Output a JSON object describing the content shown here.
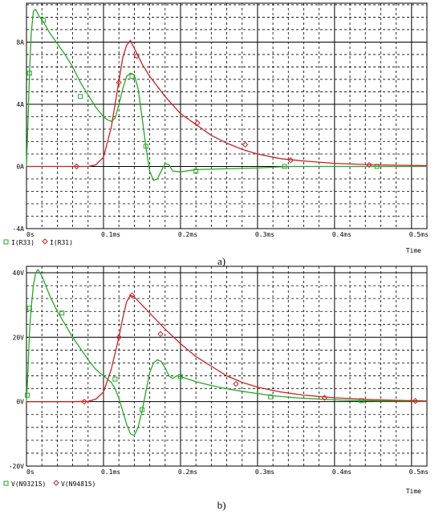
{
  "chart_data": [
    {
      "type": "line",
      "caption": "a)",
      "xlabel": "Time",
      "xlim": [
        0,
        0.52
      ],
      "ylim": [
        -4,
        10.5
      ],
      "grid": true,
      "x_ticks": [
        {
          "v": 0,
          "label": "0s"
        },
        {
          "v": 0.1,
          "label": "0.1ms"
        },
        {
          "v": 0.2,
          "label": "0.2ms"
        },
        {
          "v": 0.3,
          "label": "0.3ms"
        },
        {
          "v": 0.4,
          "label": "0.4ms"
        },
        {
          "v": 0.5,
          "label": "0.5ms"
        }
      ],
      "y_ticks": [
        {
          "v": -4,
          "label": "-4A"
        },
        {
          "v": 0,
          "label": "0A"
        },
        {
          "v": 4,
          "label": "4A"
        },
        {
          "v": 8,
          "label": "8A"
        }
      ],
      "series": [
        {
          "name": "I(R33)",
          "color": "#22aa22",
          "marker": "square",
          "points": [
            [
              0,
              0
            ],
            [
              0.002,
              3
            ],
            [
              0.004,
              6
            ],
            [
              0.006,
              8.5
            ],
            [
              0.009,
              10
            ],
            [
              0.012,
              10.1
            ],
            [
              0.016,
              9.7
            ],
            [
              0.022,
              9.3
            ],
            [
              0.03,
              8.6
            ],
            [
              0.04,
              7.9
            ],
            [
              0.05,
              7.2
            ],
            [
              0.06,
              6.4
            ],
            [
              0.07,
              5.4
            ],
            [
              0.08,
              4.6
            ],
            [
              0.09,
              3.8
            ],
            [
              0.1,
              3.2
            ],
            [
              0.105,
              3.0
            ],
            [
              0.11,
              2.9
            ],
            [
              0.115,
              3.1
            ],
            [
              0.12,
              4.0
            ],
            [
              0.125,
              5.0
            ],
            [
              0.13,
              5.8
            ],
            [
              0.135,
              6.0
            ],
            [
              0.14,
              5.9
            ],
            [
              0.145,
              5.0
            ],
            [
              0.15,
              3.2
            ],
            [
              0.155,
              1.3
            ],
            [
              0.16,
              -0.3
            ],
            [
              0.165,
              -0.9
            ],
            [
              0.17,
              -0.8
            ],
            [
              0.175,
              -0.3
            ],
            [
              0.18,
              0.2
            ],
            [
              0.185,
              0.1
            ],
            [
              0.19,
              -0.3
            ],
            [
              0.2,
              -0.35
            ],
            [
              0.22,
              -0.2
            ],
            [
              0.26,
              -0.15
            ],
            [
              0.3,
              -0.1
            ],
            [
              0.34,
              0
            ],
            [
              0.4,
              0
            ],
            [
              0.46,
              0
            ],
            [
              0.52,
              0
            ]
          ],
          "markers": [
            [
              0.004,
              6
            ],
            [
              0.022,
              9.4
            ],
            [
              0.07,
              4.5
            ],
            [
              0.137,
              5.8
            ],
            [
              0.155,
              1.3
            ],
            [
              0.22,
              -0.3
            ],
            [
              0.335,
              0
            ],
            [
              0.455,
              0
            ]
          ]
        },
        {
          "name": "I(R31)",
          "color": "#cc2222",
          "marker": "diamond",
          "points": [
            [
              0,
              0
            ],
            [
              0.06,
              0
            ],
            [
              0.08,
              0
            ],
            [
              0.09,
              0.1
            ],
            [
              0.1,
              0.6
            ],
            [
              0.11,
              2.5
            ],
            [
              0.12,
              5.5
            ],
            [
              0.125,
              7.0
            ],
            [
              0.13,
              7.8
            ],
            [
              0.135,
              8.1
            ],
            [
              0.14,
              7.6
            ],
            [
              0.15,
              6.6
            ],
            [
              0.16,
              5.8
            ],
            [
              0.18,
              4.5
            ],
            [
              0.2,
              3.4
            ],
            [
              0.22,
              2.7
            ],
            [
              0.24,
              2.0
            ],
            [
              0.26,
              1.5
            ],
            [
              0.28,
              1.1
            ],
            [
              0.3,
              0.8
            ],
            [
              0.33,
              0.5
            ],
            [
              0.36,
              0.35
            ],
            [
              0.4,
              0.2
            ],
            [
              0.45,
              0.1
            ],
            [
              0.52,
              0.05
            ]
          ],
          "markers": [
            [
              0.065,
              0
            ],
            [
              0.12,
              5.4
            ],
            [
              0.143,
              7.1
            ],
            [
              0.222,
              2.8
            ],
            [
              0.284,
              1.4
            ],
            [
              0.343,
              0.4
            ],
            [
              0.445,
              0.1
            ]
          ]
        }
      ]
    },
    {
      "type": "line",
      "caption": "b)",
      "xlabel": "Time",
      "xlim": [
        0,
        0.52
      ],
      "ylim": [
        -20,
        42
      ],
      "grid": true,
      "x_ticks": [
        {
          "v": 0,
          "label": "0s"
        },
        {
          "v": 0.1,
          "label": "0.1ms"
        },
        {
          "v": 0.2,
          "label": "0.2ms"
        },
        {
          "v": 0.3,
          "label": "0.3ms"
        },
        {
          "v": 0.4,
          "label": "0.4ms"
        },
        {
          "v": 0.5,
          "label": "0.5ms"
        }
      ],
      "y_ticks": [
        {
          "v": -20,
          "label": "-20V"
        },
        {
          "v": 0,
          "label": "0V"
        },
        {
          "v": 20,
          "label": "20V"
        },
        {
          "v": 40,
          "label": "40V"
        }
      ],
      "series": [
        {
          "name": "V(N93215)",
          "color": "#22aa22",
          "marker": "square",
          "points": [
            [
              0,
              0
            ],
            [
              0.002,
              10
            ],
            [
              0.004,
              22
            ],
            [
              0.006,
              29
            ],
            [
              0.009,
              36
            ],
            [
              0.012,
              40
            ],
            [
              0.015,
              41
            ],
            [
              0.02,
              39
            ],
            [
              0.03,
              33
            ],
            [
              0.04,
              28
            ],
            [
              0.05,
              24
            ],
            [
              0.06,
              20
            ],
            [
              0.07,
              16.5
            ],
            [
              0.08,
              13
            ],
            [
              0.09,
              10
            ],
            [
              0.1,
              8
            ],
            [
              0.11,
              6
            ],
            [
              0.115,
              4
            ],
            [
              0.12,
              1
            ],
            [
              0.125,
              -3
            ],
            [
              0.13,
              -7
            ],
            [
              0.135,
              -10
            ],
            [
              0.14,
              -10.5
            ],
            [
              0.145,
              -8
            ],
            [
              0.15,
              -3
            ],
            [
              0.155,
              3
            ],
            [
              0.16,
              9
            ],
            [
              0.165,
              12
            ],
            [
              0.17,
              13
            ],
            [
              0.175,
              12.5
            ],
            [
              0.18,
              10.5
            ],
            [
              0.185,
              8
            ],
            [
              0.19,
              7.2
            ],
            [
              0.195,
              8
            ],
            [
              0.2,
              7.8
            ],
            [
              0.21,
              7
            ],
            [
              0.22,
              6.2
            ],
            [
              0.24,
              5
            ],
            [
              0.26,
              4
            ],
            [
              0.28,
              3.2
            ],
            [
              0.3,
              2.5
            ],
            [
              0.32,
              1.8
            ],
            [
              0.35,
              1.2
            ],
            [
              0.38,
              0.8
            ],
            [
              0.42,
              0.4
            ],
            [
              0.46,
              0.2
            ],
            [
              0.52,
              0.1
            ]
          ],
          "markers": [
            [
              0.001,
              2
            ],
            [
              0.004,
              29
            ],
            [
              0.046,
              27.5
            ],
            [
              0.115,
              7
            ],
            [
              0.15,
              -2.5
            ],
            [
              0.2,
              7.8
            ],
            [
              0.317,
              1.5
            ],
            [
              0.435,
              0.3
            ]
          ]
        },
        {
          "name": "V(N94815)",
          "color": "#cc2222",
          "marker": "diamond",
          "points": [
            [
              0,
              0
            ],
            [
              0.06,
              0
            ],
            [
              0.08,
              0.1
            ],
            [
              0.09,
              0.8
            ],
            [
              0.1,
              3
            ],
            [
              0.11,
              10
            ],
            [
              0.12,
              20
            ],
            [
              0.125,
              26
            ],
            [
              0.13,
              31
            ],
            [
              0.135,
              33
            ],
            [
              0.14,
              32.5
            ],
            [
              0.15,
              30
            ],
            [
              0.16,
              27.5
            ],
            [
              0.18,
              22.5
            ],
            [
              0.2,
              18
            ],
            [
              0.22,
              14
            ],
            [
              0.24,
              11
            ],
            [
              0.26,
              8
            ],
            [
              0.28,
              6
            ],
            [
              0.3,
              4.5
            ],
            [
              0.33,
              3
            ],
            [
              0.36,
              2
            ],
            [
              0.4,
              1.2
            ],
            [
              0.45,
              0.6
            ],
            [
              0.52,
              0.2
            ]
          ],
          "markers": [
            [
              0.075,
              0
            ],
            [
              0.12,
              20
            ],
            [
              0.137,
              33
            ],
            [
              0.174,
              21
            ],
            [
              0.272,
              5.5
            ],
            [
              0.387,
              1.2
            ],
            [
              0.505,
              0.2
            ]
          ]
        }
      ]
    }
  ]
}
